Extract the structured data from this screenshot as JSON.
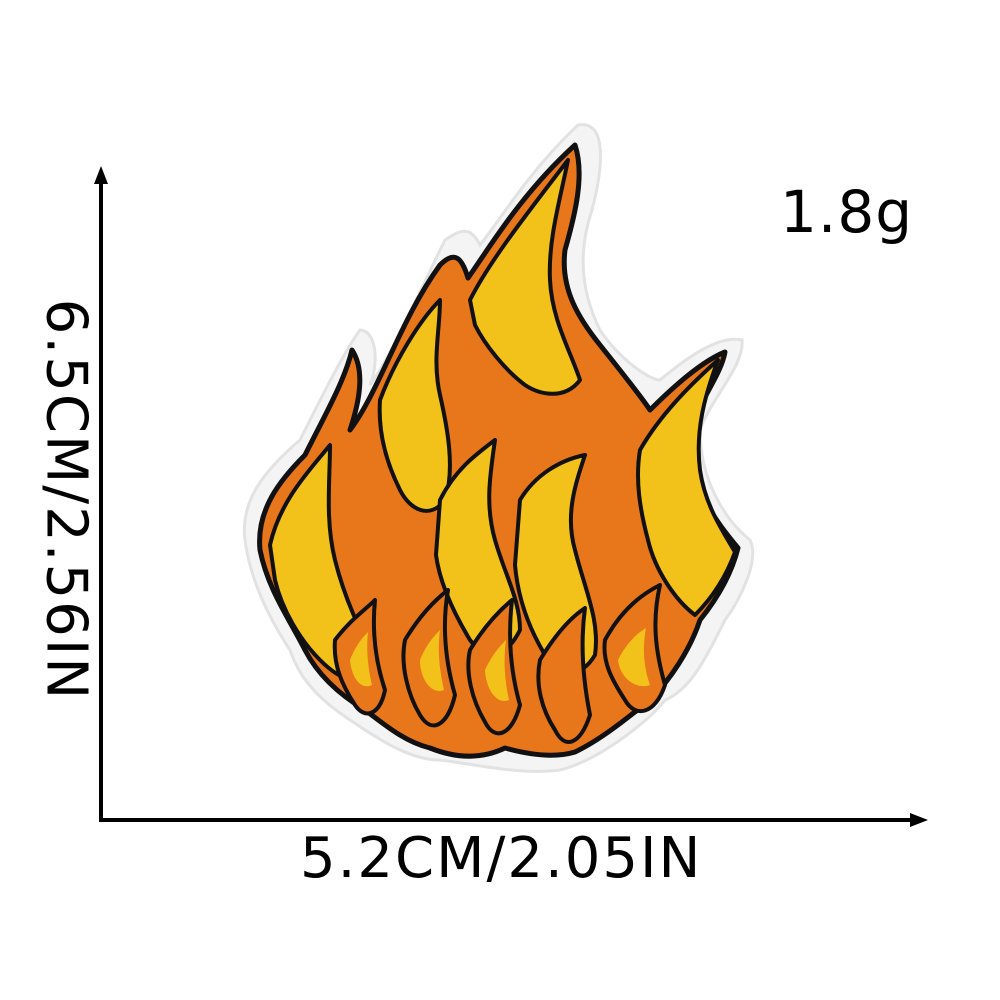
{
  "product": {
    "weight": "1.8g",
    "width_label": "5.2CM/2.05IN",
    "height_label": "6.5CM/2.56IN",
    "patch_icon": "flame-patch-icon",
    "colors": {
      "flame_orange": "#e8761a",
      "flame_yellow": "#f3c21a",
      "outline": "#111111",
      "patch_border": "#f2f2f2"
    }
  }
}
